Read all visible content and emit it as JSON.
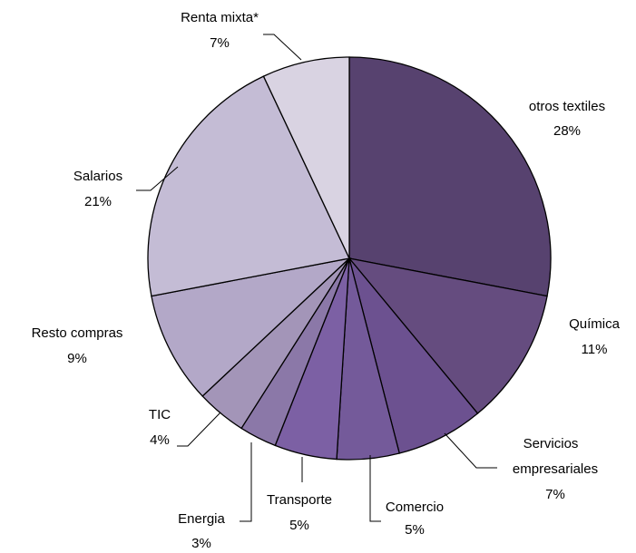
{
  "chart_data": {
    "type": "pie",
    "categories": [
      "otros textiles",
      "Química",
      "Servicios empresariales",
      "Comercio",
      "Transporte",
      "Energia",
      "TIC",
      "Resto compras",
      "Salarios",
      "Renta mixta*"
    ],
    "values": [
      28,
      11,
      7,
      5,
      5,
      3,
      4,
      9,
      21,
      7
    ],
    "value_labels": [
      "28%",
      "11%",
      "7%",
      "5%",
      "5%",
      "3%",
      "4%",
      "9%",
      "21%",
      "7%"
    ],
    "colors": [
      "#57426f",
      "#654c7f",
      "#6c5190",
      "#745a9a",
      "#7c60a4",
      "#8b78a8",
      "#a395b8",
      "#b3a8c8",
      "#c4bcd5",
      "#d9d3e2"
    ]
  }
}
